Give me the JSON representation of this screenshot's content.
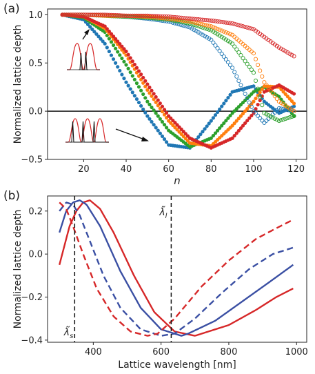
{
  "chart_data": [
    {
      "panel_label": "(a)",
      "type": "scatter",
      "xlabel": "n",
      "ylabel": "Normalized lattice depth",
      "xlim": [
        3,
        125
      ],
      "ylim": [
        -0.5,
        1.06
      ],
      "xticks": [
        20,
        40,
        60,
        80,
        100,
        120
      ],
      "yticks": [
        -0.5,
        0.0,
        0.5,
        1.0
      ],
      "ytick_labels": [
        "−0.5",
        "0.0",
        "0.5",
        "1.0"
      ],
      "zero_line": 0,
      "grid": false,
      "legend": "none",
      "n_range": [
        10,
        119
      ],
      "series": [
        {
          "color": "#1f77b4",
          "filled": true,
          "y": [
            1.0,
            0.95,
            0.7,
            0.3,
            -0.05,
            -0.35,
            -0.38,
            -0.1,
            0.2,
            0.26,
            0.1,
            -0.02,
            0.05
          ]
        },
        {
          "color": "#2ca02c",
          "filled": true,
          "y": [
            1.0,
            0.97,
            0.82,
            0.48,
            0.1,
            -0.2,
            -0.37,
            -0.28,
            -0.02,
            0.2,
            0.25,
            0.15,
            -0.05
          ]
        },
        {
          "color": "#ff7f0e",
          "filled": true,
          "y": [
            1.0,
            0.98,
            0.86,
            0.58,
            0.22,
            -0.1,
            -0.33,
            -0.36,
            -0.15,
            0.1,
            0.26,
            0.25,
            0.08
          ]
        },
        {
          "color": "#d62728",
          "filled": true,
          "y": [
            1.0,
            0.98,
            0.88,
            0.62,
            0.28,
            -0.05,
            -0.28,
            -0.38,
            -0.28,
            -0.02,
            0.2,
            0.27,
            0.18
          ]
        },
        {
          "color": "#1f77b4",
          "filled": false,
          "y": [
            1.0,
            1.0,
            0.99,
            0.98,
            0.96,
            0.93,
            0.87,
            0.74,
            0.45,
            0.0,
            -0.12,
            0.03,
            0.0
          ]
        },
        {
          "color": "#2ca02c",
          "filled": false,
          "y": [
            1.0,
            1.0,
            0.99,
            0.98,
            0.97,
            0.95,
            0.91,
            0.84,
            0.7,
            0.4,
            -0.02,
            -0.1,
            -0.05
          ]
        },
        {
          "color": "#ff7f0e",
          "filled": false,
          "y": [
            1.0,
            1.0,
            0.99,
            0.99,
            0.98,
            0.96,
            0.93,
            0.88,
            0.79,
            0.6,
            0.3,
            0.1,
            0.0
          ]
        },
        {
          "color": "#d62728",
          "filled": false,
          "y": [
            1.0,
            1.0,
            1.0,
            0.99,
            0.99,
            0.98,
            0.96,
            0.94,
            0.91,
            0.85,
            0.77,
            0.66,
            0.57
          ]
        }
      ],
      "series_x": [
        10,
        20,
        30,
        40,
        50,
        60,
        70,
        80,
        90,
        100,
        105,
        112,
        119
      ]
    },
    {
      "panel_label": "(b)",
      "type": "line",
      "xlabel": "Lattice wavelength [nm]",
      "ylabel": "Normalized lattice depth",
      "xlim": [
        265,
        1030
      ],
      "ylim": [
        -0.41,
        0.27
      ],
      "xticks": [
        400,
        600,
        800,
        1000
      ],
      "yticks": [
        -0.4,
        -0.2,
        0.0,
        0.2
      ],
      "ytick_labels": [
        "−0.4",
        "−0.2",
        "0.0",
        "0.2"
      ],
      "grid": false,
      "legend": "none",
      "annotations": [
        {
          "label": "λ̃_s",
          "x": 345
        },
        {
          "label": "λ̃_l",
          "x": 630
        }
      ],
      "series": [
        {
          "color": "#d62728",
          "dash": "solid",
          "x": [
            300,
            330,
            350,
            370,
            390,
            420,
            460,
            520,
            580,
            640,
            700,
            720,
            800,
            880,
            940,
            990
          ],
          "y": [
            -0.05,
            0.13,
            0.2,
            0.24,
            0.25,
            0.21,
            0.1,
            -0.1,
            -0.27,
            -0.36,
            -0.38,
            -0.37,
            -0.33,
            -0.26,
            -0.2,
            -0.16
          ]
        },
        {
          "color": "#3a4fa3",
          "dash": "solid",
          "x": [
            300,
            320,
            340,
            360,
            380,
            420,
            480,
            540,
            600,
            660,
            680,
            760,
            840,
            920,
            990
          ],
          "y": [
            0.1,
            0.2,
            0.24,
            0.25,
            0.23,
            0.13,
            -0.08,
            -0.25,
            -0.35,
            -0.38,
            -0.37,
            -0.31,
            -0.22,
            -0.13,
            -0.05
          ]
        },
        {
          "color": "#3a4fa3",
          "dash": "dashed",
          "x": [
            300,
            320,
            340,
            360,
            390,
            430,
            480,
            540,
            600,
            640,
            700,
            780,
            860,
            930,
            990
          ],
          "y": [
            0.2,
            0.24,
            0.23,
            0.18,
            0.06,
            -0.1,
            -0.25,
            -0.35,
            -0.38,
            -0.37,
            -0.3,
            -0.18,
            -0.07,
            0.0,
            0.03
          ]
        },
        {
          "color": "#d62728",
          "dash": "dashed",
          "x": [
            300,
            320,
            340,
            370,
            410,
            460,
            510,
            560,
            590,
            640,
            720,
            800,
            880,
            940,
            990
          ],
          "y": [
            0.24,
            0.21,
            0.13,
            0.0,
            -0.16,
            -0.29,
            -0.36,
            -0.38,
            -0.37,
            -0.3,
            -0.15,
            -0.03,
            0.07,
            0.12,
            0.16
          ]
        }
      ]
    }
  ]
}
